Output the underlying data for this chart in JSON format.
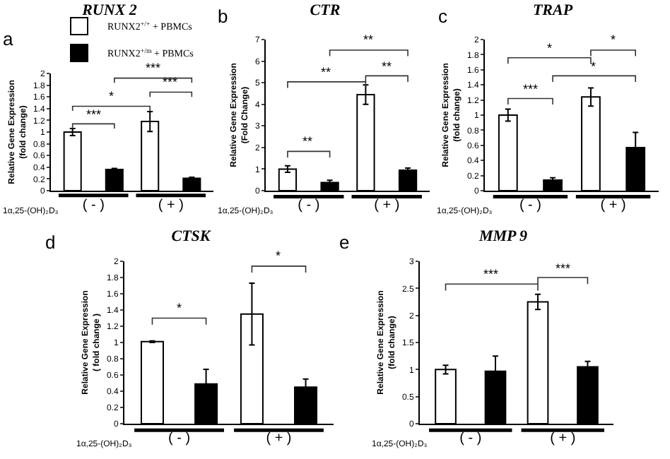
{
  "chart_data": [
    {
      "type": "bar",
      "title": "RUNX 2",
      "xlabel": "1α,25-(OH)₂D₃",
      "ylabel": "Relative Gene Expression\n(fold change)",
      "categories": [
        "( - )",
        "( + )"
      ],
      "legend": "top left",
      "grid": false,
      "ylim": [
        0,
        2
      ],
      "yticks": [
        0,
        0.2,
        0.4,
        0.6,
        0.8,
        1,
        1.2,
        1.4,
        1.6,
        1.8,
        2
      ],
      "annotations": [
        "a",
        "***",
        "*",
        "***",
        "***"
      ],
      "series": [
        {
          "name": "RUNX2$^{+/+}$ + PBMCs",
          "color": "#ffffff",
          "values": [
            1.0,
            1.18
          ],
          "errors": [
            0.06,
            0.17
          ]
        },
        {
          "name": "RUNX2$^{+/m}$ + PBMCs",
          "color": "#000000",
          "values": [
            0.36,
            0.21
          ],
          "errors": [
            0.02,
            0.02
          ]
        }
      ]
    },
    {
      "type": "bar",
      "title": "CTR",
      "xlabel": "1α,25-(OH)₂D₃",
      "ylabel": "Relative Gene Expression\n(Fold Change)",
      "categories": [
        "( - )",
        "( + )"
      ],
      "legend": false,
      "grid": false,
      "ylim": [
        0,
        7
      ],
      "yticks": [
        0,
        1,
        2,
        3,
        4,
        5,
        6,
        7
      ],
      "annotations": [
        "b",
        "**",
        "**",
        "**",
        "**"
      ],
      "series": [
        {
          "color": "#ffffff",
          "values": [
            1.0,
            4.45
          ],
          "errors": [
            0.15,
            0.45
          ]
        },
        {
          "color": "#000000",
          "values": [
            0.38,
            0.95
          ],
          "errors": [
            0.1,
            0.1
          ]
        }
      ]
    },
    {
      "type": "bar",
      "title": "TRAP",
      "xlabel": "1α,25-(OH)₂D₃",
      "ylabel": "Relative Gene Expression\n(fold change)",
      "categories": [
        "( - )",
        "( + )"
      ],
      "legend": false,
      "grid": false,
      "ylim": [
        0,
        2
      ],
      "yticks": [
        0,
        0.2,
        0.4,
        0.6,
        0.8,
        1,
        1.2,
        1.4,
        1.6,
        1.8,
        2
      ],
      "annotations": [
        "c",
        "*",
        "*",
        "*",
        "***"
      ],
      "series": [
        {
          "color": "#ffffff",
          "values": [
            1.0,
            1.24
          ],
          "errors": [
            0.08,
            0.12
          ]
        },
        {
          "color": "#000000",
          "values": [
            0.14,
            0.57
          ],
          "errors": [
            0.03,
            0.2
          ]
        }
      ]
    },
    {
      "type": "bar",
      "title": "CTSK",
      "xlabel": "1α,25-(OH)₂D₃",
      "ylabel": "Relative Gene Expression\n( fold change )",
      "categories": [
        "( - )",
        "( + )"
      ],
      "legend": false,
      "grid": false,
      "ylim": [
        0,
        2
      ],
      "yticks": [
        0,
        0.2,
        0.4,
        0.6,
        0.8,
        1,
        1.2,
        1.4,
        1.6,
        1.8,
        2
      ],
      "annotations": [
        "d",
        "*",
        "*"
      ],
      "series": [
        {
          "color": "#ffffff",
          "values": [
            1.01,
            1.35
          ],
          "errors": [
            0.01,
            0.38
          ]
        },
        {
          "color": "#000000",
          "values": [
            0.49,
            0.45
          ],
          "errors": [
            0.18,
            0.1
          ]
        }
      ]
    },
    {
      "type": "bar",
      "title": "MMP 9",
      "xlabel": "1α,25-(OH)₂D₃",
      "ylabel": "Relative Gene Expression\n(fold change)",
      "categories": [
        "( - )",
        "( + )"
      ],
      "legend": false,
      "grid": false,
      "ylim": [
        0,
        3
      ],
      "yticks": [
        0,
        0.5,
        1,
        1.5,
        2,
        2.5,
        3
      ],
      "annotations": [
        "e",
        "***",
        "***"
      ],
      "series": [
        {
          "color": "#ffffff",
          "values": [
            1.0,
            2.25
          ],
          "errors": [
            0.08,
            0.14
          ]
        },
        {
          "color": "#000000",
          "values": [
            0.97,
            1.05
          ],
          "errors": [
            0.28,
            0.1
          ]
        }
      ]
    }
  ]
}
